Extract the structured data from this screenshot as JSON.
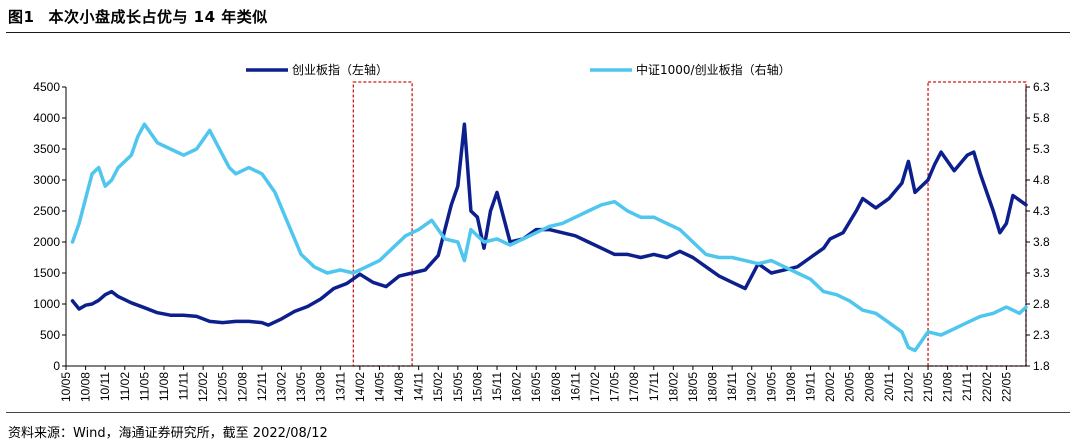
{
  "figure": {
    "number": "图1",
    "title": "本次小盘成长占优与 14 年类似",
    "source": "资料来源：Wind，海通证券研究所，截至 2022/08/12"
  },
  "colors": {
    "series_left": "#0d1f8c",
    "series_right": "#4fc6ee",
    "highlight_box": "#d01818"
  },
  "chart_data": {
    "type": "line",
    "legend_position": "top",
    "grid": false,
    "left_axis": {
      "min": 0,
      "max": 4500,
      "ticks": [
        0,
        500,
        1000,
        1500,
        2000,
        2500,
        3000,
        3500,
        4000,
        4500
      ]
    },
    "right_axis": {
      "min": 1.8,
      "max": 6.3,
      "ticks": [
        "1.8",
        "2.3",
        "2.8",
        "3.3",
        "3.8",
        "4.3",
        "4.8",
        "5.3",
        "5.8",
        "6.3"
      ]
    },
    "x_range": [
      "2010-05",
      "2022-08"
    ],
    "x_tick_labels": [
      "10/05",
      "10/08",
      "10/11",
      "11/02",
      "11/05",
      "11/08",
      "11/11",
      "12/02",
      "12/05",
      "12/08",
      "12/11",
      "13/02",
      "13/05",
      "13/08",
      "13/11",
      "14/02",
      "14/05",
      "14/08",
      "14/11",
      "15/02",
      "15/05",
      "15/08",
      "15/11",
      "16/02",
      "16/05",
      "16/08",
      "16/11",
      "17/02",
      "17/05",
      "17/08",
      "17/11",
      "18/02",
      "18/05",
      "18/08",
      "18/11",
      "19/02",
      "19/05",
      "19/08",
      "19/11",
      "20/02",
      "20/05",
      "20/08",
      "20/11",
      "21/02",
      "21/05",
      "21/08",
      "21/11",
      "22/02",
      "22/05"
    ],
    "highlight_periods": [
      {
        "start": "2014-01",
        "end": "2014-10"
      },
      {
        "start": "2021-05",
        "end": "2022-08"
      }
    ],
    "series": [
      {
        "name": "创业板指（左轴）",
        "axis": "left",
        "x": [
          "2010-06",
          "2010-07",
          "2010-08",
          "2010-09",
          "2010-10",
          "2010-11",
          "2010-12",
          "2011-01",
          "2011-03",
          "2011-05",
          "2011-07",
          "2011-09",
          "2011-11",
          "2012-01",
          "2012-03",
          "2012-05",
          "2012-07",
          "2012-09",
          "2012-11",
          "2012-12",
          "2013-02",
          "2013-04",
          "2013-06",
          "2013-08",
          "2013-10",
          "2013-12",
          "2014-02",
          "2014-04",
          "2014-06",
          "2014-08",
          "2014-10",
          "2014-12",
          "2015-02",
          "2015-04",
          "2015-05",
          "2015-06",
          "2015-07",
          "2015-08",
          "2015-09",
          "2015-10",
          "2015-11",
          "2016-01",
          "2016-03",
          "2016-05",
          "2016-07",
          "2016-09",
          "2016-11",
          "2017-01",
          "2017-03",
          "2017-05",
          "2017-07",
          "2017-09",
          "2017-11",
          "2018-01",
          "2018-03",
          "2018-05",
          "2018-07",
          "2018-09",
          "2018-11",
          "2019-01",
          "2019-03",
          "2019-05",
          "2019-07",
          "2019-09",
          "2019-11",
          "2020-01",
          "2020-02",
          "2020-04",
          "2020-06",
          "2020-07",
          "2020-09",
          "2020-11",
          "2021-01",
          "2021-02",
          "2021-03",
          "2021-05",
          "2021-06",
          "2021-07",
          "2021-09",
          "2021-11",
          "2021-12",
          "2022-01",
          "2022-03",
          "2022-04",
          "2022-05",
          "2022-06",
          "2022-08"
        ],
        "values": [
          1050,
          920,
          980,
          1000,
          1060,
          1150,
          1200,
          1120,
          1020,
          940,
          860,
          820,
          820,
          800,
          720,
          700,
          720,
          720,
          700,
          660,
          760,
          880,
          960,
          1080,
          1250,
          1330,
          1480,
          1350,
          1280,
          1450,
          1500,
          1550,
          1780,
          2600,
          2900,
          3900,
          2500,
          2400,
          1900,
          2500,
          2800,
          2000,
          2050,
          2200,
          2200,
          2150,
          2100,
          2000,
          1900,
          1800,
          1800,
          1750,
          1800,
          1750,
          1850,
          1750,
          1600,
          1450,
          1350,
          1250,
          1650,
          1500,
          1550,
          1600,
          1750,
          1900,
          2050,
          2150,
          2500,
          2700,
          2550,
          2700,
          2950,
          3300,
          2800,
          3000,
          3250,
          3450,
          3150,
          3400,
          3450,
          3100,
          2500,
          2150,
          2300,
          2750,
          2600
        ]
      },
      {
        "name": "中证1000/创业板指（右轴）",
        "axis": "right",
        "x": [
          "2010-06",
          "2010-07",
          "2010-08",
          "2010-09",
          "2010-10",
          "2010-11",
          "2010-12",
          "2011-01",
          "2011-03",
          "2011-04",
          "2011-05",
          "2011-07",
          "2011-09",
          "2011-11",
          "2012-01",
          "2012-02",
          "2012-03",
          "2012-05",
          "2012-06",
          "2012-07",
          "2012-09",
          "2012-11",
          "2013-01",
          "2013-03",
          "2013-05",
          "2013-07",
          "2013-09",
          "2013-11",
          "2014-01",
          "2014-03",
          "2014-05",
          "2014-07",
          "2014-09",
          "2014-11",
          "2015-01",
          "2015-03",
          "2015-05",
          "2015-06",
          "2015-07",
          "2015-09",
          "2015-11",
          "2016-01",
          "2016-03",
          "2016-05",
          "2016-07",
          "2016-09",
          "2016-11",
          "2017-01",
          "2017-03",
          "2017-05",
          "2017-07",
          "2017-09",
          "2017-11",
          "2018-01",
          "2018-03",
          "2018-05",
          "2018-07",
          "2018-09",
          "2018-11",
          "2019-01",
          "2019-03",
          "2019-05",
          "2019-07",
          "2019-09",
          "2019-11",
          "2020-01",
          "2020-03",
          "2020-05",
          "2020-07",
          "2020-09",
          "2020-11",
          "2021-01",
          "2021-02",
          "2021-03",
          "2021-05",
          "2021-07",
          "2021-09",
          "2021-11",
          "2022-01",
          "2022-03",
          "2022-05",
          "2022-07",
          "2022-08"
        ],
        "values": [
          3.8,
          4.1,
          4.5,
          4.9,
          5.0,
          4.7,
          4.8,
          5.0,
          5.2,
          5.5,
          5.7,
          5.4,
          5.3,
          5.2,
          5.3,
          5.45,
          5.6,
          5.2,
          5.0,
          4.9,
          5.0,
          4.9,
          4.6,
          4.1,
          3.6,
          3.4,
          3.3,
          3.35,
          3.3,
          3.4,
          3.5,
          3.7,
          3.9,
          4.0,
          4.15,
          3.85,
          3.8,
          3.5,
          4.0,
          3.8,
          3.85,
          3.75,
          3.85,
          3.95,
          4.05,
          4.1,
          4.2,
          4.3,
          4.4,
          4.45,
          4.3,
          4.2,
          4.2,
          4.1,
          4.0,
          3.8,
          3.6,
          3.55,
          3.55,
          3.5,
          3.45,
          3.5,
          3.4,
          3.3,
          3.2,
          3.0,
          2.95,
          2.85,
          2.7,
          2.65,
          2.5,
          2.35,
          2.1,
          2.05,
          2.35,
          2.3,
          2.4,
          2.5,
          2.6,
          2.65,
          2.75,
          2.65,
          2.75
        ]
      }
    ]
  }
}
